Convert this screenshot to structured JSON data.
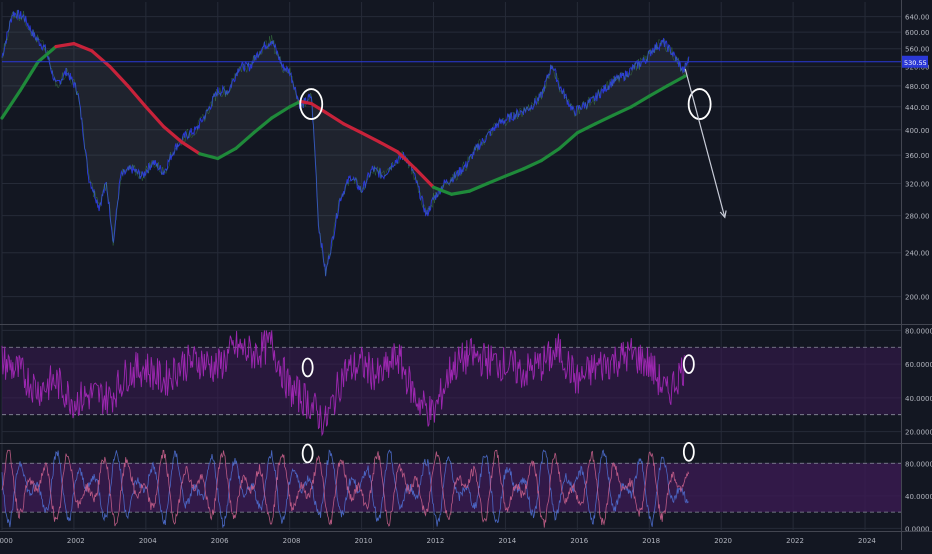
{
  "chart_data": [
    {
      "type": "line",
      "panel": "price",
      "title": "",
      "xlabel": "",
      "ylabel": "",
      "scale": "log",
      "grid": true,
      "ylim": [
        180,
        680
      ],
      "xlim": [
        2000.0,
        2025.0
      ],
      "yticks": [
        "640.00",
        "600.00",
        "560.00",
        "520.00",
        "480.00",
        "440.00",
        "400.00",
        "360.00",
        "320.00",
        "280.00",
        "240.00",
        "200.00"
      ],
      "ytick_values": [
        640,
        600,
        560,
        520,
        480,
        440,
        400,
        360,
        320,
        280,
        240,
        200
      ],
      "price_label": "530.55",
      "price_line_value": 530.55,
      "series": [
        {
          "name": "",
          "role": "price",
          "color": "#2b38d6",
          "x": [
            2000.0,
            2000.3,
            2000.6,
            2000.9,
            2001.2,
            2001.5,
            2001.8,
            2002.1,
            2002.4,
            2002.7,
            2002.9,
            2003.1,
            2003.3,
            2003.6,
            2003.9,
            2004.2,
            2004.5,
            2004.8,
            2005.1,
            2005.4,
            2005.7,
            2006.0,
            2006.3,
            2006.6,
            2006.9,
            2007.2,
            2007.5,
            2007.8,
            2008.0,
            2008.3,
            2008.6,
            2008.8,
            2009.0,
            2009.2,
            2009.4,
            2009.7,
            2010.0,
            2010.3,
            2010.6,
            2010.9,
            2011.2,
            2011.4,
            2011.6,
            2011.8,
            2012.0,
            2012.3,
            2012.6,
            2012.9,
            2013.2,
            2013.5,
            2013.8,
            2014.1,
            2014.4,
            2014.7,
            2015.0,
            2015.3,
            2015.5,
            2015.7,
            2015.9,
            2016.1,
            2016.4,
            2016.7,
            2017.0,
            2017.3,
            2017.6,
            2017.9,
            2018.1,
            2018.4,
            2018.6,
            2018.8,
            2018.95,
            2019.1
          ],
          "y": [
            540,
            650,
            640,
            590,
            560,
            480,
            510,
            470,
            330,
            290,
            320,
            250,
            330,
            340,
            330,
            350,
            335,
            370,
            390,
            400,
            430,
            470,
            470,
            520,
            520,
            560,
            580,
            520,
            510,
            440,
            460,
            270,
            220,
            255,
            300,
            330,
            310,
            340,
            330,
            350,
            360,
            340,
            310,
            280,
            300,
            320,
            330,
            345,
            370,
            390,
            410,
            420,
            430,
            440,
            460,
            525,
            480,
            455,
            430,
            440,
            450,
            470,
            490,
            500,
            520,
            535,
            560,
            575,
            555,
            530,
            510,
            535
          ]
        },
        {
          "name": "",
          "role": "long moving average",
          "colors": {
            "up": "#1f8a3a",
            "down": "#c8223a"
          },
          "x": [
            2000.0,
            2000.5,
            2001.0,
            2001.5,
            2002.0,
            2002.5,
            2003.0,
            2003.5,
            2004.0,
            2004.5,
            2005.0,
            2005.5,
            2006.0,
            2006.5,
            2007.0,
            2007.5,
            2008.0,
            2008.3,
            2008.6,
            2009.0,
            2009.5,
            2010.0,
            2010.5,
            2011.0,
            2011.5,
            2012.0,
            2012.5,
            2013.0,
            2013.5,
            2014.0,
            2014.5,
            2015.0,
            2015.5,
            2016.0,
            2016.5,
            2017.0,
            2017.5,
            2018.0,
            2018.5,
            2019.0
          ],
          "y": [
            420,
            470,
            530,
            565,
            572,
            555,
            520,
            480,
            440,
            405,
            380,
            362,
            355,
            370,
            395,
            420,
            440,
            450,
            446,
            430,
            410,
            395,
            380,
            365,
            340,
            315,
            306,
            310,
            320,
            330,
            340,
            352,
            370,
            395,
            410,
            425,
            440,
            460,
            480,
            500
          ],
          "direction": [
            "up",
            "up",
            "up",
            "up",
            "down",
            "down",
            "down",
            "down",
            "down",
            "down",
            "down",
            "down",
            "up",
            "up",
            "up",
            "up",
            "up",
            "up",
            "down",
            "down",
            "down",
            "down",
            "down",
            "down",
            "down",
            "down",
            "up",
            "up",
            "up",
            "up",
            "up",
            "up",
            "up",
            "up",
            "up",
            "up",
            "up",
            "up",
            "up",
            "up"
          ]
        }
      ]
    },
    {
      "type": "line",
      "panel": "oscillator-1",
      "title": "",
      "ylim": [
        15,
        82
      ],
      "yticks": [
        "80.0000",
        "60.0000",
        "40.0000",
        "20.0000"
      ],
      "ytick_values": [
        80,
        60,
        40,
        20
      ],
      "bands": [
        30,
        70
      ],
      "series": [
        {
          "name": "",
          "color": "#9c27b0",
          "x": [
            2000.0,
            2000.5,
            2001.0,
            2001.5,
            2002.0,
            2002.5,
            2003.0,
            2003.5,
            2004.0,
            2004.5,
            2005.0,
            2005.5,
            2006.0,
            2006.5,
            2007.0,
            2007.5,
            2008.0,
            2008.5,
            2009.0,
            2009.5,
            2010.0,
            2010.5,
            2011.0,
            2011.5,
            2012.0,
            2012.5,
            2013.0,
            2013.5,
            2014.0,
            2014.5,
            2015.0,
            2015.5,
            2016.0,
            2016.5,
            2017.0,
            2017.5,
            2018.0,
            2018.5,
            2019.0
          ],
          "y": [
            62,
            55,
            45,
            50,
            38,
            42,
            40,
            55,
            58,
            50,
            60,
            62,
            58,
            70,
            66,
            72,
            45,
            38,
            25,
            55,
            60,
            52,
            65,
            40,
            30,
            58,
            65,
            62,
            60,
            55,
            60,
            68,
            50,
            58,
            62,
            66,
            60,
            42,
            60
          ]
        }
      ]
    },
    {
      "type": "line",
      "panel": "oscillator-2",
      "title": "",
      "ylim": [
        -2,
        100
      ],
      "yticks": [
        "80.0000",
        "40.0000",
        "0.0000"
      ],
      "ytick_values": [
        80,
        40,
        0
      ],
      "bands": [
        20,
        80
      ],
      "series": [
        {
          "name": "",
          "color": "#4f6fd1",
          "oscillating": true
        },
        {
          "name": "",
          "color": "#c9608c",
          "oscillating": true
        }
      ]
    }
  ],
  "xaxis": {
    "ticks": [
      "2000",
      "2002",
      "2004",
      "2006",
      "2008",
      "2010",
      "2012",
      "2014",
      "2016",
      "2018",
      "2020",
      "2022",
      "2024"
    ],
    "tick_values": [
      2000,
      2002,
      2004,
      2006,
      2008,
      2010,
      2012,
      2014,
      2016,
      2018,
      2020,
      2022,
      2024
    ]
  },
  "annotations": [
    {
      "shape": "circle",
      "panel": 0,
      "at": [
        2008.6,
        445
      ]
    },
    {
      "shape": "circle",
      "panel": 0,
      "at": [
        2019.4,
        445
      ]
    },
    {
      "shape": "arrow",
      "panel": 0,
      "from": [
        2019.0,
        515
      ],
      "to": [
        2020.1,
        278
      ]
    },
    {
      "shape": "circle",
      "panel": 1,
      "at": [
        2008.5,
        58
      ]
    },
    {
      "shape": "circle",
      "panel": 1,
      "at": [
        2019.1,
        60
      ]
    },
    {
      "shape": "circle",
      "panel": 2,
      "at": [
        2008.5,
        92
      ]
    },
    {
      "shape": "circle",
      "panel": 2,
      "at": [
        2019.1,
        94
      ]
    }
  ],
  "colors": {
    "background": "#131722",
    "grid": "#262b38",
    "price_line": "#2b38d6",
    "band_fill": "#3b1a52",
    "axis_text": "#b2b5be",
    "annotation": "#ffffff"
  }
}
